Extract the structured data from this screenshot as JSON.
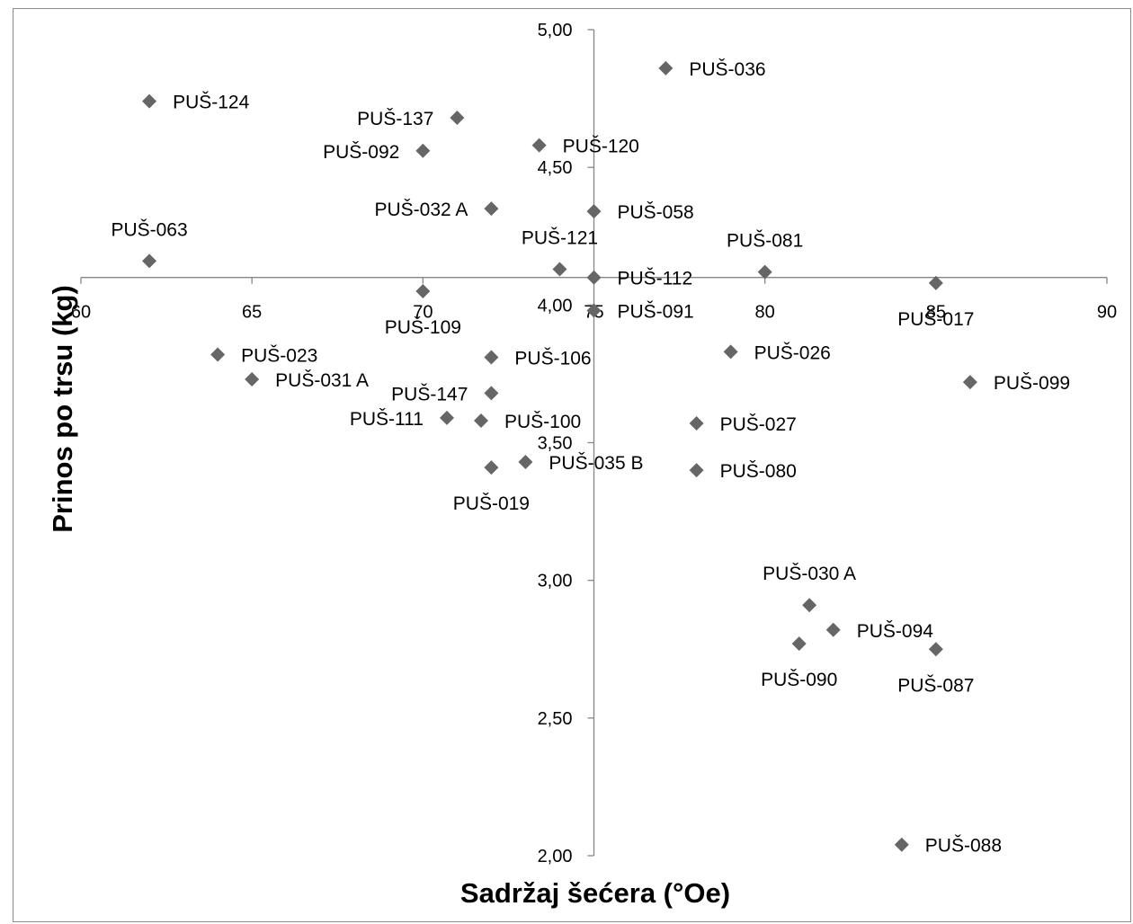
{
  "chart_data": {
    "type": "scatter",
    "xlabel": "Sadržaj šećera (°Oe)",
    "ylabel": "Prinos po trsu (kg)",
    "xlim": [
      60,
      90
    ],
    "ylim": [
      2.0,
      5.0
    ],
    "x_crosses_y_at": 4.1,
    "y_crosses_x_at": 75,
    "x_ticks": [
      "60",
      "65",
      "70",
      "75",
      "80",
      "85",
      "90"
    ],
    "x_tick_values": [
      60,
      65,
      70,
      75,
      80,
      85,
      90
    ],
    "y_ticks": [
      "2,00",
      "2,50",
      "3,00",
      "3,50",
      "4,00",
      "4,50",
      "5,00"
    ],
    "y_tick_values": [
      2.0,
      2.5,
      3.0,
      3.5,
      4.0,
      4.5,
      5.0
    ],
    "grid": false,
    "legend": "none",
    "marker": "diamond",
    "marker_color": "#666666",
    "points": [
      {
        "label": "PUŠ-036",
        "x": 77.1,
        "y": 4.86,
        "pos": "right"
      },
      {
        "label": "PUŠ-124",
        "x": 62.0,
        "y": 4.74,
        "pos": "right"
      },
      {
        "label": "PUŠ-137",
        "x": 71.0,
        "y": 4.68,
        "pos": "left"
      },
      {
        "label": "PUŠ-092",
        "x": 70.0,
        "y": 4.56,
        "pos": "left"
      },
      {
        "label": "PUŠ-120",
        "x": 73.4,
        "y": 4.58,
        "pos": "right"
      },
      {
        "label": "PUŠ-032 A",
        "x": 72.0,
        "y": 4.35,
        "pos": "left"
      },
      {
        "label": "PUŠ-058",
        "x": 75.0,
        "y": 4.34,
        "pos": "right"
      },
      {
        "label": "PUŠ-063",
        "x": 62.0,
        "y": 4.16,
        "pos": "above"
      },
      {
        "label": "PUŠ-121",
        "x": 74.0,
        "y": 4.13,
        "pos": "above"
      },
      {
        "label": "PUŠ-112",
        "x": 75.0,
        "y": 4.1,
        "pos": "right"
      },
      {
        "label": "PUŠ-081",
        "x": 80.0,
        "y": 4.12,
        "pos": "above"
      },
      {
        "label": "PUŠ-109",
        "x": 70.0,
        "y": 4.05,
        "pos": "below"
      },
      {
        "label": "PUŠ-017",
        "x": 85.0,
        "y": 4.08,
        "pos": "below"
      },
      {
        "label": "PUŠ-091",
        "x": 75.0,
        "y": 3.98,
        "pos": "right"
      },
      {
        "label": "PUŠ-023",
        "x": 64.0,
        "y": 3.82,
        "pos": "right"
      },
      {
        "label": "PUŠ-026",
        "x": 79.0,
        "y": 3.83,
        "pos": "right"
      },
      {
        "label": "PUŠ-106",
        "x": 72.0,
        "y": 3.81,
        "pos": "right"
      },
      {
        "label": "PUŠ-031 A",
        "x": 65.0,
        "y": 3.73,
        "pos": "right"
      },
      {
        "label": "PUŠ-099",
        "x": 86.0,
        "y": 3.72,
        "pos": "right"
      },
      {
        "label": "PUŠ-147",
        "x": 72.0,
        "y": 3.68,
        "pos": "left"
      },
      {
        "label": "PUŠ-111",
        "x": 70.7,
        "y": 3.59,
        "pos": "left"
      },
      {
        "label": "PUŠ-100",
        "x": 71.7,
        "y": 3.58,
        "pos": "right"
      },
      {
        "label": "PUŠ-027",
        "x": 78.0,
        "y": 3.57,
        "pos": "right"
      },
      {
        "label": "PUŠ-035 B",
        "x": 73.0,
        "y": 3.43,
        "pos": "right"
      },
      {
        "label": "PUŠ-019",
        "x": 72.0,
        "y": 3.41,
        "pos": "below"
      },
      {
        "label": "PUŠ-080",
        "x": 78.0,
        "y": 3.4,
        "pos": "right"
      },
      {
        "label": "PUŠ-030 A",
        "x": 81.3,
        "y": 2.91,
        "pos": "above"
      },
      {
        "label": "PUŠ-094",
        "x": 82.0,
        "y": 2.82,
        "pos": "right"
      },
      {
        "label": "PUŠ-090",
        "x": 81.0,
        "y": 2.77,
        "pos": "below"
      },
      {
        "label": "PUŠ-087",
        "x": 85.0,
        "y": 2.75,
        "pos": "below"
      },
      {
        "label": "PUŠ-088",
        "x": 84.0,
        "y": 2.04,
        "pos": "right"
      }
    ]
  }
}
